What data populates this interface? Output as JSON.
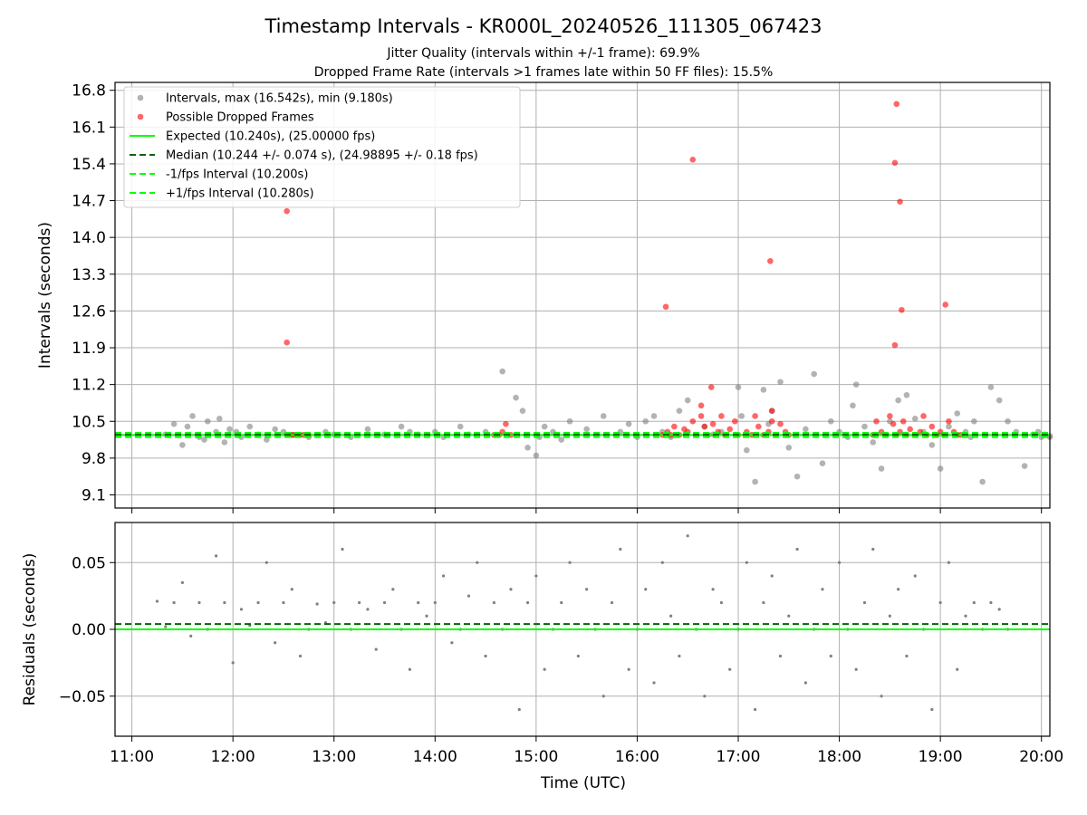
{
  "figure": {
    "title": "Timestamp Intervals - KR000L_20240526_111305_067423",
    "subtitle_1": "Jitter Quality (intervals within +/-1 frame): 69.9%",
    "subtitle_2": "Dropped Frame Rate (intervals >1 frames late within 50 FF files): 15.5%"
  },
  "colors": {
    "intervals": "#808080",
    "dropped": "#ff0000",
    "expected": "#00ff00",
    "median": "#006400",
    "bounds": "#00ff00",
    "grid": "#b0b0b0",
    "residuals": "#808080"
  },
  "chart_data": [
    {
      "type": "scatter",
      "ylabel": "Intervals (seconds)",
      "xlim": [
        "10:50",
        "20:05"
      ],
      "ylim": [
        8.85,
        16.95
      ],
      "yticks": [
        "9.1",
        "9.8",
        "10.5",
        "11.2",
        "11.9",
        "12.6",
        "13.3",
        "14.0",
        "14.7",
        "15.4",
        "16.1",
        "16.8"
      ],
      "grid": true,
      "legend_position": "top-left",
      "legend": [
        {
          "kind": "marker",
          "color": "#808080",
          "label": "Intervals, max (16.542s), min (9.180s)"
        },
        {
          "kind": "marker",
          "color": "#ff0000",
          "label": "Possible Dropped Frames"
        },
        {
          "kind": "solid",
          "color": "#00ff00",
          "label": "Expected (10.240s), (25.00000 fps)"
        },
        {
          "kind": "dashed",
          "color": "#006400",
          "label": "Median (10.244 +/- 0.074 s), (24.98895 +/- 0.18 fps)"
        },
        {
          "kind": "dashed",
          "color": "#00ff00",
          "label": "-1/fps Interval (10.200s)"
        },
        {
          "kind": "dashed",
          "color": "#00ff00",
          "label": "+1/fps Interval (10.280s)"
        }
      ],
      "series": [
        {
          "name": "Intervals, max (16.542s), min (9.180s)",
          "x": [
            "11:20",
            "11:25",
            "11:30",
            "11:33",
            "11:36",
            "11:40",
            "11:43",
            "11:45",
            "11:50",
            "11:52",
            "11:55",
            "11:58",
            "12:02",
            "12:05",
            "12:10",
            "12:15",
            "12:20",
            "12:25",
            "12:30",
            "12:45",
            "12:55",
            "13:00",
            "13:10",
            "13:20",
            "13:30",
            "13:40",
            "13:45",
            "13:50",
            "14:00",
            "14:05",
            "14:15",
            "14:20",
            "14:30",
            "14:40",
            "14:48",
            "14:52",
            "14:55",
            "15:00",
            "15:02",
            "15:05",
            "15:10",
            "15:15",
            "15:20",
            "15:30",
            "15:40",
            "15:50",
            "15:55",
            "16:00",
            "16:05",
            "16:10",
            "16:15",
            "16:20",
            "16:25",
            "16:30",
            "16:40",
            "16:45",
            "16:50",
            "17:00",
            "17:02",
            "17:05",
            "17:10",
            "17:15",
            "17:18",
            "17:20",
            "17:25",
            "17:30",
            "17:35",
            "17:40",
            "17:45",
            "17:50",
            "17:55",
            "18:00",
            "18:05",
            "18:08",
            "18:10",
            "18:15",
            "18:20",
            "18:25",
            "18:30",
            "18:35",
            "18:40",
            "18:45",
            "18:50",
            "18:55",
            "19:00",
            "19:05",
            "19:10",
            "19:15",
            "19:18",
            "19:20",
            "19:25",
            "19:30",
            "19:35",
            "19:40",
            "19:45",
            "19:50",
            "19:55",
            "19:58",
            "20:00",
            "20:02",
            "20:05",
            "20:05"
          ],
          "y": [
            10.25,
            10.45,
            10.05,
            10.4,
            10.6,
            10.2,
            10.15,
            10.5,
            10.3,
            10.55,
            10.1,
            10.35,
            10.3,
            10.2,
            10.4,
            10.25,
            10.15,
            10.35,
            10.3,
            10.2,
            10.3,
            10.25,
            10.2,
            10.35,
            10.25,
            10.4,
            10.3,
            10.25,
            10.3,
            10.2,
            10.4,
            10.25,
            10.3,
            11.45,
            10.95,
            10.7,
            10.0,
            9.85,
            10.2,
            10.4,
            10.3,
            10.15,
            10.5,
            10.35,
            10.6,
            10.3,
            10.45,
            10.2,
            10.5,
            10.6,
            10.3,
            10.2,
            10.7,
            10.9,
            10.4,
            10.25,
            10.3,
            11.15,
            10.6,
            9.95,
            9.35,
            11.1,
            10.45,
            10.7,
            11.25,
            10.0,
            9.45,
            10.35,
            11.4,
            9.7,
            10.5,
            10.3,
            10.2,
            10.8,
            11.2,
            10.4,
            10.1,
            9.6,
            10.5,
            10.9,
            11.0,
            10.55,
            10.3,
            10.05,
            9.6,
            10.4,
            10.65,
            10.3,
            10.2,
            10.5,
            9.35,
            11.15,
            10.9,
            10.5,
            10.3,
            9.65,
            10.25,
            10.3,
            10.2,
            10.25,
            10.2,
            10.22
          ]
        },
        {
          "name": "Possible Dropped Frames",
          "x": [
            "12:32",
            "12:35",
            "12:36",
            "12:38",
            "12:40",
            "12:42",
            "12:45",
            "14:35",
            "14:38",
            "14:40",
            "14:42",
            "14:45",
            "16:15",
            "16:18",
            "16:20",
            "16:22",
            "16:25",
            "16:28",
            "16:30",
            "16:33",
            "16:35",
            "16:38",
            "16:40",
            "16:42",
            "16:45",
            "16:48",
            "16:50",
            "16:52",
            "16:55",
            "16:58",
            "17:00",
            "17:05",
            "17:08",
            "17:10",
            "17:12",
            "17:15",
            "17:18",
            "17:20",
            "17:22",
            "17:25",
            "17:28",
            "17:30",
            "18:20",
            "18:22",
            "18:25",
            "18:28",
            "18:30",
            "18:32",
            "18:34",
            "18:36",
            "18:38",
            "18:40",
            "18:42",
            "18:45",
            "18:48",
            "18:50",
            "18:52",
            "18:55",
            "18:58",
            "19:00",
            "19:02",
            "19:05",
            "19:08",
            "19:10",
            "19:12",
            "18:33",
            "18:34",
            "18:36",
            "18:33",
            "18:37",
            "19:03",
            "17:19",
            "17:20",
            "16:33",
            "16:44",
            "12:32",
            "12:32",
            "16:17",
            "16:38"
          ],
          "y": [
            10.24,
            10.24,
            10.24,
            10.24,
            10.24,
            10.24,
            10.24,
            10.24,
            10.24,
            10.3,
            10.45,
            10.24,
            10.24,
            10.3,
            10.24,
            10.4,
            10.24,
            10.35,
            10.3,
            10.5,
            10.24,
            10.6,
            10.4,
            10.24,
            10.45,
            10.3,
            10.6,
            10.24,
            10.35,
            10.5,
            10.24,
            10.3,
            10.24,
            10.6,
            10.4,
            10.24,
            10.3,
            10.5,
            10.24,
            10.45,
            10.3,
            10.24,
            10.24,
            10.5,
            10.3,
            10.24,
            10.6,
            10.45,
            10.24,
            10.3,
            10.5,
            10.24,
            10.35,
            10.24,
            10.3,
            10.6,
            10.24,
            10.4,
            10.24,
            10.3,
            10.24,
            10.5,
            10.3,
            10.24,
            10.24,
            15.42,
            16.54,
            14.68,
            11.95,
            12.62,
            12.72,
            13.55,
            10.7,
            15.48,
            11.15,
            14.5,
            12.0,
            12.68,
            10.8
          ]
        }
      ],
      "reference_lines": [
        {
          "label": "Expected (10.240s), (25.00000 fps)",
          "y": 10.24,
          "style": "solid",
          "color": "#00ff00"
        },
        {
          "label": "Median (10.244 +/- 0.074 s), (24.98895 +/- 0.18 fps)",
          "y": 10.244,
          "style": "dashed",
          "color": "#006400"
        },
        {
          "label": "-1/fps Interval (10.200s)",
          "y": 10.2,
          "style": "dashed",
          "color": "#00ff00"
        },
        {
          "label": "+1/fps Interval (10.280s)",
          "y": 10.28,
          "style": "dashed",
          "color": "#00ff00"
        }
      ]
    },
    {
      "type": "scatter",
      "xlabel": "Time (UTC)",
      "ylabel": "Residuals (seconds)",
      "xlim": [
        "10:50",
        "20:05"
      ],
      "xticks": [
        "11:00",
        "12:00",
        "13:00",
        "14:00",
        "15:00",
        "16:00",
        "17:00",
        "18:00",
        "19:00",
        "20:00"
      ],
      "ylim": [
        -0.08,
        0.08
      ],
      "yticks": [
        "−0.05",
        "0.00",
        "0.05"
      ],
      "grid": true,
      "reference_lines": [
        {
          "y": 0.0,
          "style": "solid",
          "color": "#00ff00"
        },
        {
          "y": 0.004,
          "style": "dashed",
          "color": "#006400"
        }
      ],
      "series": [
        {
          "x": [
            "11:15",
            "11:20",
            "11:25",
            "11:30",
            "11:35",
            "11:40",
            "11:45",
            "11:50",
            "11:55",
            "12:00",
            "12:05",
            "12:10",
            "12:15",
            "12:20",
            "12:25",
            "12:30",
            "12:35",
            "12:40",
            "12:45",
            "12:50",
            "12:55",
            "13:00",
            "13:05",
            "13:10",
            "13:15",
            "13:20",
            "13:25",
            "13:30",
            "13:35",
            "13:40",
            "13:45",
            "13:50",
            "13:55",
            "14:00",
            "14:05",
            "14:10",
            "14:15",
            "14:20",
            "14:25",
            "14:30",
            "14:35",
            "14:40",
            "14:45",
            "14:50",
            "14:55",
            "15:00",
            "15:05",
            "15:10",
            "15:15",
            "15:20",
            "15:25",
            "15:30",
            "15:35",
            "15:40",
            "15:45",
            "15:50",
            "15:55",
            "16:00",
            "16:05",
            "16:10",
            "16:15",
            "16:20",
            "16:25",
            "16:30",
            "16:35",
            "16:40",
            "16:45",
            "16:50",
            "16:55",
            "17:00",
            "17:05",
            "17:10",
            "17:15",
            "17:20",
            "17:25",
            "17:30",
            "17:35",
            "17:40",
            "17:45",
            "17:50",
            "17:55",
            "18:00",
            "18:05",
            "18:10",
            "18:15",
            "18:20",
            "18:25",
            "18:30",
            "18:35",
            "18:40",
            "18:45",
            "18:50",
            "18:55",
            "19:00",
            "19:05",
            "19:10",
            "19:15",
            "19:20",
            "19:25",
            "19:30",
            "19:35",
            "19:40"
          ],
          "y": [
            0.021,
            0.002,
            0.02,
            0.035,
            -0.005,
            0.02,
            0.0,
            0.055,
            0.02,
            -0.025,
            0.015,
            0.003,
            0.02,
            0.05,
            -0.01,
            0.02,
            0.03,
            -0.02,
            0.0,
            0.019,
            0.005,
            0.02,
            0.06,
            0.0,
            0.02,
            0.015,
            -0.015,
            0.02,
            0.03,
            0.0,
            -0.03,
            0.02,
            0.01,
            0.02,
            0.04,
            -0.01,
            0.0,
            0.025,
            0.05,
            -0.02,
            0.02,
            0.0,
            0.03,
            -0.06,
            0.02,
            0.04,
            -0.03,
            0.0,
            0.02,
            0.05,
            -0.02,
            0.03,
            0.0,
            -0.05,
            0.02,
            0.06,
            -0.03,
            0.0,
            0.03,
            -0.04,
            0.05,
            0.01,
            -0.02,
            0.07,
            0.0,
            -0.05,
            0.03,
            0.02,
            -0.03,
            0.0,
            0.05,
            -0.06,
            0.02,
            0.04,
            -0.02,
            0.01,
            0.06,
            -0.04,
            0.0,
            0.03,
            -0.02,
            0.05,
            0.0,
            -0.03,
            0.02,
            0.06,
            -0.05,
            0.01,
            0.03,
            -0.02,
            0.04,
            0.0,
            -0.06,
            0.02,
            0.05,
            -0.03,
            0.01,
            0.02,
            0.0,
            0.02,
            0.015,
            0.0
          ]
        }
      ]
    }
  ]
}
